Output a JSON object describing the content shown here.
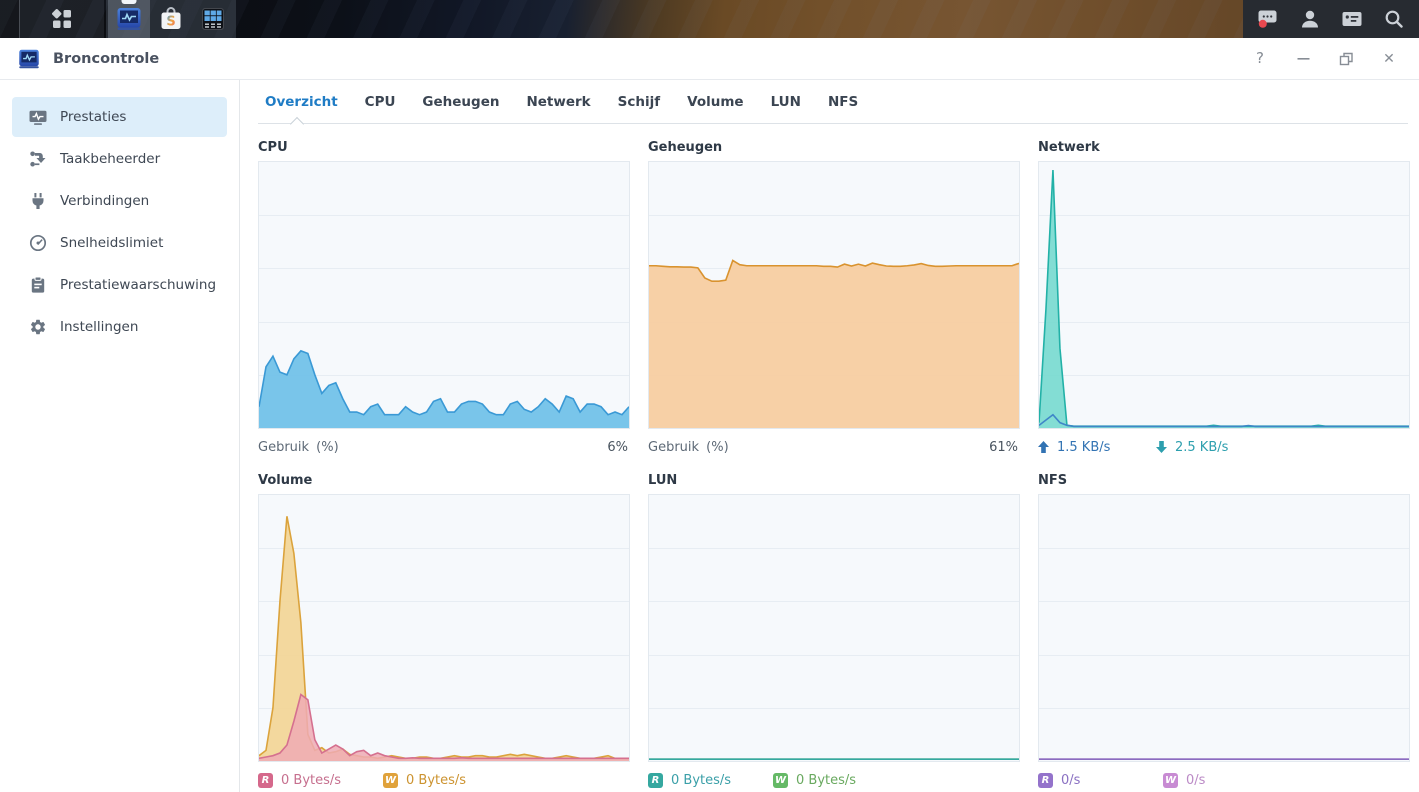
{
  "taskbar": {
    "apps": [
      {
        "name": "main-menu"
      },
      {
        "name": "resource-monitor",
        "active": true
      },
      {
        "name": "package-center",
        "letter": "S"
      },
      {
        "name": "app-grid"
      }
    ],
    "tray": [
      "notifications",
      "user",
      "widgets",
      "search"
    ]
  },
  "window": {
    "title": "Broncontrole",
    "controls": {
      "help": "?",
      "minimize": "—",
      "restore": "",
      "close": "✕"
    }
  },
  "sidebar": {
    "items": [
      {
        "label": "Prestaties",
        "active": true
      },
      {
        "label": "Taakbeheerder"
      },
      {
        "label": "Verbindingen"
      },
      {
        "label": "Snelheidslimiet"
      },
      {
        "label": "Prestatiewaarschuwing"
      },
      {
        "label": "Instellingen"
      }
    ]
  },
  "tabs": {
    "items": [
      "Overzicht",
      "CPU",
      "Geheugen",
      "Netwerk",
      "Schijf",
      "Volume",
      "LUN",
      "NFS"
    ],
    "active": "Overzicht"
  },
  "panels": [
    {
      "title": "CPU",
      "legend_label": "Gebruik (%)",
      "legend_value": "6%"
    },
    {
      "title": "Geheugen",
      "legend_label": "Gebruik (%)",
      "legend_value": "61%"
    },
    {
      "title": "Netwerk",
      "legend": [
        {
          "dir": "up",
          "text": "1.5 KB/s",
          "color": "#3273b3"
        },
        {
          "dir": "down",
          "text": "2.5 KB/s",
          "color": "#2d9fae"
        }
      ]
    },
    {
      "title": "Volume",
      "legend": [
        {
          "badge": "R",
          "badge_color": "#d5688b",
          "text": "0 Bytes/s",
          "text_color": "#c66f8e"
        },
        {
          "badge": "W",
          "badge_color": "#e0a23b",
          "text": "0 Bytes/s",
          "text_color": "#cc9330"
        }
      ]
    },
    {
      "title": "LUN",
      "legend": [
        {
          "badge": "R",
          "badge_color": "#35a8a0",
          "text": "0 Bytes/s",
          "text_color": "#3a9fa8"
        },
        {
          "badge": "W",
          "badge_color": "#65b966",
          "text": "0 Bytes/s",
          "text_color": "#69a95f"
        }
      ]
    },
    {
      "title": "NFS",
      "legend": [
        {
          "badge": "R",
          "badge_color": "#9473cb",
          "text": "0/s",
          "text_color": "#8a70c2"
        },
        {
          "badge": "W",
          "badge_color": "#c88bd3",
          "text": "0/s",
          "text_color": "#bb8ac6"
        }
      ]
    }
  ],
  "chart_data": [
    {
      "panel": "CPU",
      "type": "area",
      "ylabel": "Gebruik (%)",
      "current": "6%",
      "ylim": [
        0,
        100
      ],
      "grid": true,
      "series": [
        {
          "name": "cpu_usage_pct",
          "stroke": "#3a99d5",
          "fill": "#72c2e9",
          "fill_opacity": 0.95,
          "values": [
            8,
            23,
            27,
            21,
            20,
            26,
            29,
            28,
            20,
            13,
            16,
            17,
            11,
            6,
            6,
            5,
            8,
            9,
            5,
            5,
            5,
            8,
            6,
            5,
            6,
            10,
            11,
            6,
            6,
            9,
            10,
            10,
            9,
            6,
            5,
            5,
            9,
            10,
            7,
            6,
            8,
            11,
            9,
            6,
            12,
            11,
            6,
            9,
            9,
            8,
            5,
            6,
            5,
            8
          ]
        }
      ]
    },
    {
      "panel": "Geheugen",
      "type": "area",
      "ylabel": "Gebruik (%)",
      "current": "61%",
      "ylim": [
        0,
        100
      ],
      "grid": true,
      "series": [
        {
          "name": "memory_usage_pct",
          "stroke": "#d9932f",
          "fill": "#f7cda1",
          "fill_opacity": 0.95,
          "values": [
            61,
            61,
            60.8,
            60.6,
            60.6,
            60.5,
            60.5,
            60.2,
            56.4,
            55.2,
            55.2,
            55.6,
            63,
            61.4,
            61,
            61,
            61,
            61,
            61,
            61,
            61,
            61,
            61,
            61,
            61,
            60.8,
            60.8,
            60.5,
            61.6,
            60.9,
            61.6,
            60.9,
            62,
            61.4,
            60.9,
            60.8,
            60.8,
            61,
            61.3,
            61.8,
            61.1,
            60.8,
            60.8,
            60.9,
            61,
            61,
            61,
            61,
            61,
            61,
            61,
            61,
            61,
            61.9
          ]
        }
      ]
    },
    {
      "panel": "Netwerk",
      "type": "area",
      "current_up": "1.5 KB/s",
      "current_down": "2.5 KB/s",
      "ylim": [
        0,
        100
      ],
      "grid": true,
      "units": "relative",
      "series": [
        {
          "name": "download",
          "stroke": "#22b1a7",
          "fill": "#6fd8cd",
          "fill_opacity": 0.85,
          "values": [
            2,
            45,
            97,
            30,
            1,
            0.7,
            0.7,
            0.7,
            0.7,
            0.7,
            0.7,
            0.7,
            0.7,
            0.7,
            0.7,
            0.7,
            0.7,
            0.7,
            0.7,
            0.7,
            0.7,
            0.7,
            0.7,
            0.7,
            0.7,
            1,
            0.7,
            0.7,
            0.7,
            0.7,
            0.7,
            0.7,
            0.7,
            0.7,
            0.7,
            0.7,
            0.7,
            0.7,
            0.7,
            0.7,
            1,
            0.7,
            0.7,
            0.7,
            0.7,
            0.7,
            0.7,
            0.7,
            0.7,
            0.7,
            0.7,
            0.7,
            0.7,
            0.7
          ]
        },
        {
          "name": "upload",
          "stroke": "#3f86c8",
          "fill": "none",
          "values": [
            1,
            3,
            5,
            2,
            1,
            0.6,
            0.6,
            0.6,
            0.6,
            0.6,
            0.6,
            0.6,
            0.6,
            0.6,
            0.6,
            0.6,
            0.6,
            0.6,
            0.6,
            0.6,
            0.6,
            0.6,
            0.6,
            0.6,
            0.6,
            0.6,
            0.6,
            0.6,
            0.6,
            0.6,
            0.9,
            0.6,
            0.6,
            0.6,
            0.6,
            0.6,
            0.6,
            0.6,
            0.6,
            0.6,
            0.6,
            0.6,
            0.6,
            0.6,
            0.6,
            0.6,
            0.6,
            0.6,
            0.6,
            0.6,
            0.6,
            0.6,
            0.6,
            0.6
          ]
        }
      ]
    },
    {
      "panel": "Volume",
      "type": "area",
      "current_read": "0 Bytes/s",
      "current_write": "0 Bytes/s",
      "ylim": [
        0,
        100
      ],
      "grid": true,
      "units": "relative",
      "series": [
        {
          "name": "write",
          "stroke": "#dba33c",
          "fill": "#f3d494",
          "fill_opacity": 0.9,
          "values": [
            2,
            4,
            20,
            60,
            92,
            78,
            52,
            10,
            4,
            5,
            3,
            3.5,
            4.5,
            2.5,
            2,
            1.5,
            1.5,
            1,
            1.5,
            2,
            1.5,
            1,
            1,
            1.5,
            1.5,
            1,
            1,
            1.5,
            2,
            1.5,
            1.5,
            2,
            2,
            1.5,
            1.5,
            2,
            2.5,
            2,
            2.5,
            2,
            1.5,
            1,
            1,
            1.5,
            2,
            1.5,
            1,
            1,
            1,
            1.5,
            2,
            1,
            1,
            1
          ]
        },
        {
          "name": "read",
          "stroke": "#d5708f",
          "fill": "#efabb4",
          "fill_opacity": 0.85,
          "values": [
            1,
            1.5,
            2,
            3,
            6,
            15,
            25,
            23,
            8,
            3,
            4.5,
            6,
            4.5,
            2,
            3.5,
            4,
            2,
            3,
            2,
            1.5,
            1,
            1,
            1.2,
            1,
            1,
            1,
            1,
            1,
            1,
            1.2,
            1,
            1,
            1,
            1,
            1,
            1,
            1,
            1,
            1,
            1,
            1,
            1,
            1,
            1,
            1,
            1,
            1,
            1,
            1,
            1,
            1,
            1,
            1,
            1
          ]
        }
      ]
    },
    {
      "panel": "LUN",
      "type": "area",
      "current_read": "0 Bytes/s",
      "current_write": "0 Bytes/s",
      "ylim": [
        0,
        100
      ],
      "grid": true,
      "units": "relative",
      "series": [
        {
          "name": "write",
          "stroke": "#65b966",
          "fill": "none",
          "values": [
            0.7,
            0.7
          ]
        },
        {
          "name": "read",
          "stroke": "#35a8a0",
          "fill": "none",
          "values": [
            0.7,
            0.7
          ]
        }
      ]
    },
    {
      "panel": "NFS",
      "type": "area",
      "current_read": "0/s",
      "current_write": "0/s",
      "ylim": [
        0,
        100
      ],
      "grid": true,
      "units": "relative",
      "series": [
        {
          "name": "write",
          "stroke": "#c88bd3",
          "fill": "none",
          "values": [
            0.7,
            0.7
          ]
        },
        {
          "name": "read",
          "stroke": "#8a6cc0",
          "fill": "none",
          "values": [
            0.7,
            0.7
          ]
        }
      ]
    }
  ]
}
